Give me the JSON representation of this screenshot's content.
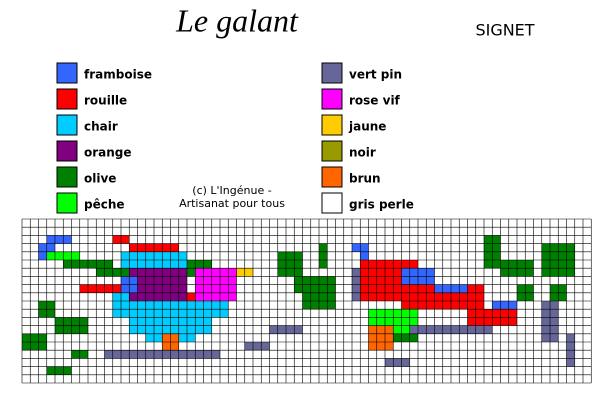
{
  "header": {
    "title": "Le galant",
    "tag": "SIGNET"
  },
  "legend": [
    {
      "label": "framboise",
      "color": "#3366ff"
    },
    {
      "label": "rouille",
      "color": "#ff0000"
    },
    {
      "label": "chair",
      "color": "#00ccff"
    },
    {
      "label": "orange",
      "color": "#800080"
    },
    {
      "label": "olive",
      "color": "#008000"
    },
    {
      "label": "pêche",
      "color": "#00ff00"
    },
    {
      "label": "vert pin",
      "color": "#666699"
    },
    {
      "label": "rose vif",
      "color": "#ff00ff"
    },
    {
      "label": "jaune",
      "color": "#ffcc00"
    },
    {
      "label": "noir",
      "color": "#999900"
    },
    {
      "label": "brun",
      "color": "#ff6600"
    },
    {
      "label": "gris perle",
      "color": "#ffffff"
    }
  ],
  "credit": [
    "(c) L'Ingénue -",
    "Artisanat pour tous"
  ]
}
